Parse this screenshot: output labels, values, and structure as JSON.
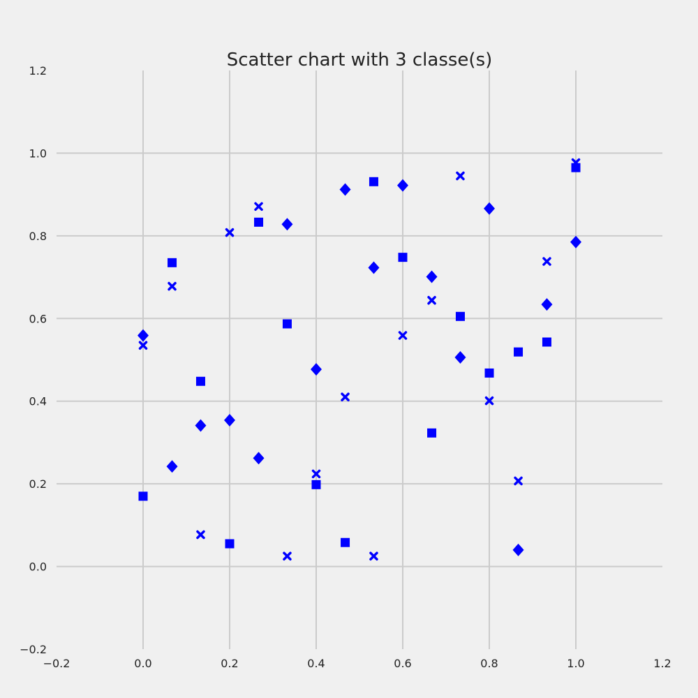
{
  "chart_data": {
    "type": "scatter",
    "title": "Scatter chart with 3 classe(s)",
    "xlabel": "",
    "ylabel": "",
    "xlim": [
      -0.2,
      1.2
    ],
    "ylim": [
      -0.2,
      1.2
    ],
    "grid": true,
    "x_ticks": [
      "−0.2",
      "0.0",
      "0.2",
      "0.4",
      "0.6",
      "0.8",
      "1.0",
      "1.2"
    ],
    "y_ticks": [
      "−0.2",
      "0.0",
      "0.2",
      "0.4",
      "0.6",
      "0.8",
      "1.0",
      "1.2"
    ],
    "marker_color": "#0000ff",
    "series": [
      {
        "marker": "square",
        "points": [
          [
            0.0,
            0.17
          ],
          [
            0.067,
            0.735
          ],
          [
            0.133,
            0.448
          ],
          [
            0.2,
            0.055
          ],
          [
            0.267,
            0.833
          ],
          [
            0.333,
            0.587
          ],
          [
            0.4,
            0.198
          ],
          [
            0.467,
            0.058
          ],
          [
            0.533,
            0.931
          ],
          [
            0.6,
            0.748
          ],
          [
            0.667,
            0.323
          ],
          [
            0.733,
            0.605
          ],
          [
            0.8,
            0.468
          ],
          [
            0.867,
            0.519
          ],
          [
            0.933,
            0.543
          ],
          [
            1.0,
            0.965
          ]
        ]
      },
      {
        "marker": "x",
        "points": [
          [
            0.0,
            0.535
          ],
          [
            0.067,
            0.678
          ],
          [
            0.133,
            0.077
          ],
          [
            0.2,
            0.808
          ],
          [
            0.267,
            0.871
          ],
          [
            0.333,
            0.025
          ],
          [
            0.4,
            0.224
          ],
          [
            0.467,
            0.41
          ],
          [
            0.533,
            0.025
          ],
          [
            0.6,
            0.559
          ],
          [
            0.667,
            0.644
          ],
          [
            0.733,
            0.945
          ],
          [
            0.8,
            0.401
          ],
          [
            0.867,
            0.207
          ],
          [
            0.933,
            0.738
          ],
          [
            1.0,
            0.977
          ]
        ]
      },
      {
        "marker": "diamond",
        "points": [
          [
            0.0,
            0.559
          ],
          [
            0.067,
            0.242
          ],
          [
            0.133,
            0.341
          ],
          [
            0.2,
            0.354
          ],
          [
            0.267,
            0.262
          ],
          [
            0.333,
            0.828
          ],
          [
            0.4,
            0.477
          ],
          [
            0.467,
            0.912
          ],
          [
            0.533,
            0.723
          ],
          [
            0.6,
            0.922
          ],
          [
            0.667,
            0.701
          ],
          [
            0.733,
            0.506
          ],
          [
            0.8,
            0.866
          ],
          [
            0.867,
            0.04
          ],
          [
            0.933,
            0.634
          ],
          [
            1.0,
            0.785
          ]
        ]
      }
    ]
  }
}
